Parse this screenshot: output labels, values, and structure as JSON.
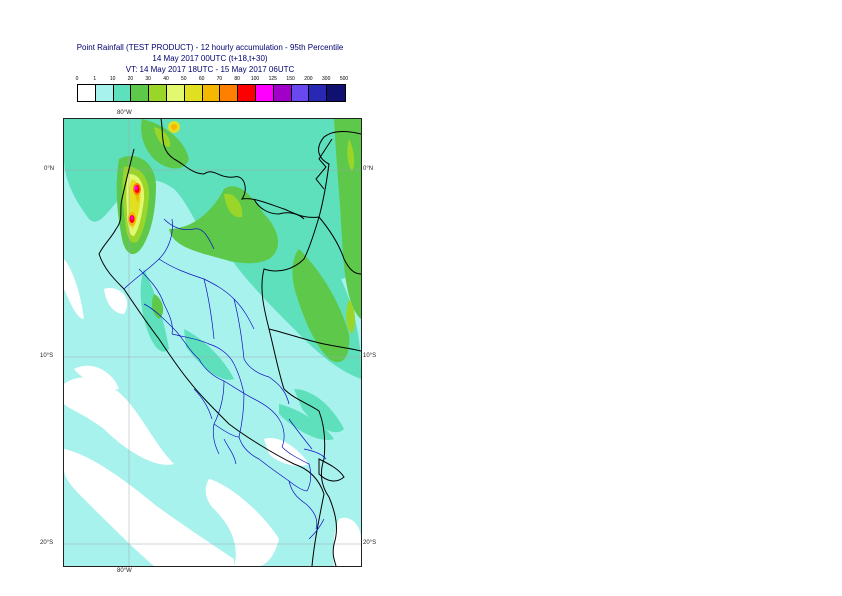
{
  "header": {
    "title_line1": "Point Rainfall (TEST PRODUCT) - 12 hourly accumulation - 95th Percentile",
    "title_line2": "14 May 2017 00UTC (t+18,t+30)",
    "title_line3": "VT: 14 May 2017 18UTC - 15 May 2017 06UTC"
  },
  "legend": {
    "thresholds": [
      "0",
      "1",
      "10",
      "20",
      "30",
      "40",
      "50",
      "60",
      "70",
      "80",
      "100",
      "125",
      "150",
      "200",
      "300",
      "500"
    ],
    "colors": [
      "#ffffff",
      "#a8f2ee",
      "#5ee0bc",
      "#5ec84a",
      "#9ad62a",
      "#e2f870",
      "#e0e020",
      "#f5b800",
      "#ff8000",
      "#ff0000",
      "#ff00ff",
      "#a000c8",
      "#6a48f0",
      "#2828b4",
      "#101070"
    ]
  },
  "map": {
    "lon_label_top": "80°W",
    "lon_label_bottom": "80°W",
    "lat_labels_left": [
      "0°N",
      "10°S",
      "20°S"
    ],
    "lat_labels_right": [
      "0°N",
      "10°S",
      "20°S"
    ]
  }
}
